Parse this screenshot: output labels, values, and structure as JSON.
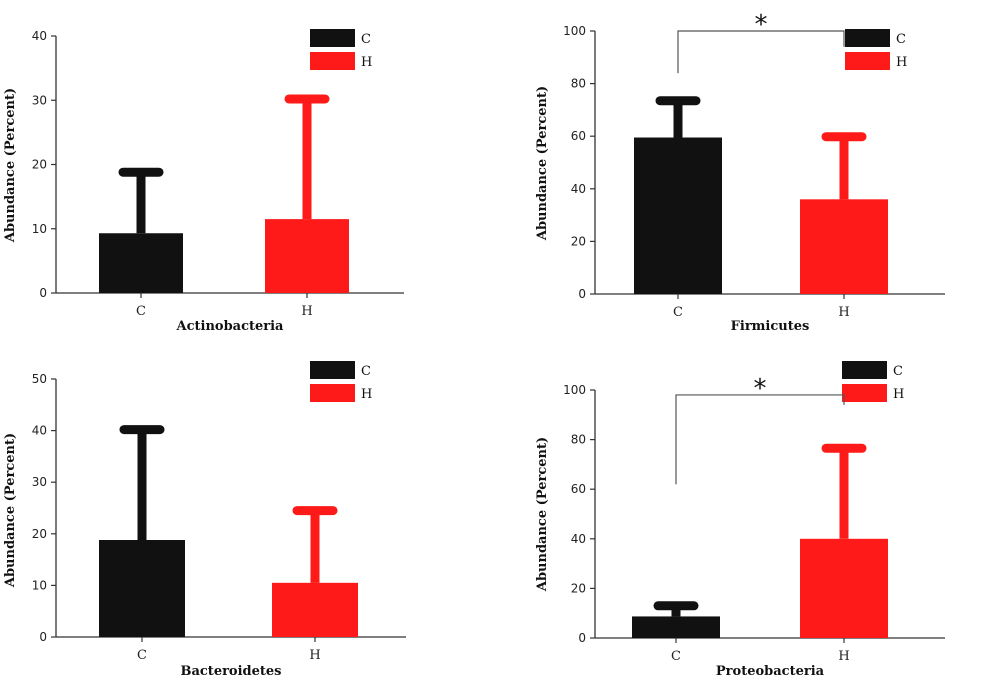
{
  "chart_data": [
    {
      "type": "bar",
      "xlabel": "Actinobacteria",
      "ylabel": "Abundance (Percent)",
      "categories": [
        "C",
        "H"
      ],
      "values": [
        9.3,
        11.5
      ],
      "error_upper": [
        18.8,
        30.2
      ],
      "colors": [
        "#111111",
        "#ff1a1a"
      ],
      "ylim": [
        0,
        40
      ],
      "yticks": [
        0,
        10,
        20,
        30,
        40
      ],
      "legend": [
        "C",
        "H"
      ],
      "legend_position": "top-right",
      "significance": null
    },
    {
      "type": "bar",
      "xlabel": "Firmicutes",
      "ylabel": "Abundance (Percent)",
      "categories": [
        "C",
        "H"
      ],
      "values": [
        59.5,
        36
      ],
      "error_upper": [
        73.5,
        59.8
      ],
      "colors": [
        "#111111",
        "#ff1a1a"
      ],
      "ylim": [
        0,
        100
      ],
      "yticks": [
        0,
        20,
        40,
        60,
        80,
        100
      ],
      "legend": [
        "C",
        "H"
      ],
      "legend_position": "top-right",
      "significance": {
        "label": "*",
        "bracket_y": 100,
        "left_end": 84,
        "right_end": 94
      }
    },
    {
      "type": "bar",
      "xlabel": "Bacteroidetes",
      "ylabel": "Abundance (Percent)",
      "categories": [
        "C",
        "H"
      ],
      "values": [
        18.8,
        10.5
      ],
      "error_upper": [
        40.2,
        24.5
      ],
      "colors": [
        "#111111",
        "#ff1a1a"
      ],
      "ylim": [
        0,
        50
      ],
      "yticks": [
        0,
        10,
        20,
        30,
        40,
        50
      ],
      "legend": [
        "C",
        "H"
      ],
      "legend_position": "top-right",
      "significance": null
    },
    {
      "type": "bar",
      "xlabel": "Proteobacteria",
      "ylabel": "Abundance (Percent)",
      "categories": [
        "C",
        "H"
      ],
      "values": [
        8.7,
        40
      ],
      "error_upper": [
        13,
        76.5
      ],
      "colors": [
        "#111111",
        "#ff1a1a"
      ],
      "ylim": [
        0,
        100
      ],
      "yticks": [
        0,
        20,
        40,
        60,
        80,
        100
      ],
      "legend": [
        "C",
        "H"
      ],
      "legend_position": "top-right",
      "significance": {
        "label": "*",
        "bracket_y": 98,
        "left_end": 62,
        "right_end": 94
      }
    }
  ]
}
